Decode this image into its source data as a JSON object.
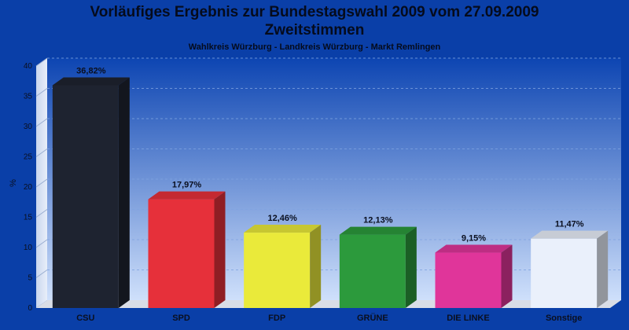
{
  "header": {
    "title_line1": "Vorläufiges Ergebnis zur Bundestagswahl 2009 vom 27.09.2009",
    "title_line2": "Zweitstimmen",
    "subtitle": "Wahlkreis Würzburg - Landkreis Würzburg - Markt Remlingen"
  },
  "colors": {
    "background": "#0a3fa8"
  },
  "chart_data": {
    "type": "bar",
    "title": "Vorläufiges Ergebnis zur Bundestagswahl 2009 vom 27.09.2009 Zweitstimmen",
    "subtitle": "Wahlkreis Würzburg - Landkreis Würzburg - Markt Remlingen",
    "xlabel": "",
    "ylabel": "%",
    "ylim": [
      0,
      40
    ],
    "yticks": [
      0,
      5,
      10,
      15,
      20,
      25,
      30,
      35,
      40
    ],
    "grid": true,
    "categories": [
      "CSU",
      "SPD",
      "FDP",
      "GRÜNE",
      "DIE LINKE",
      "Sonstige"
    ],
    "values": [
      36.82,
      17.97,
      12.46,
      12.13,
      9.15,
      11.47
    ],
    "value_labels": [
      "36,82%",
      "17,97%",
      "12,46%",
      "12,13%",
      "9,15%",
      "11,47%"
    ],
    "colors": [
      "#1e2330",
      "#e6303a",
      "#eaea3a",
      "#2c9a3c",
      "#e0359a",
      "#eaf0fb"
    ]
  }
}
